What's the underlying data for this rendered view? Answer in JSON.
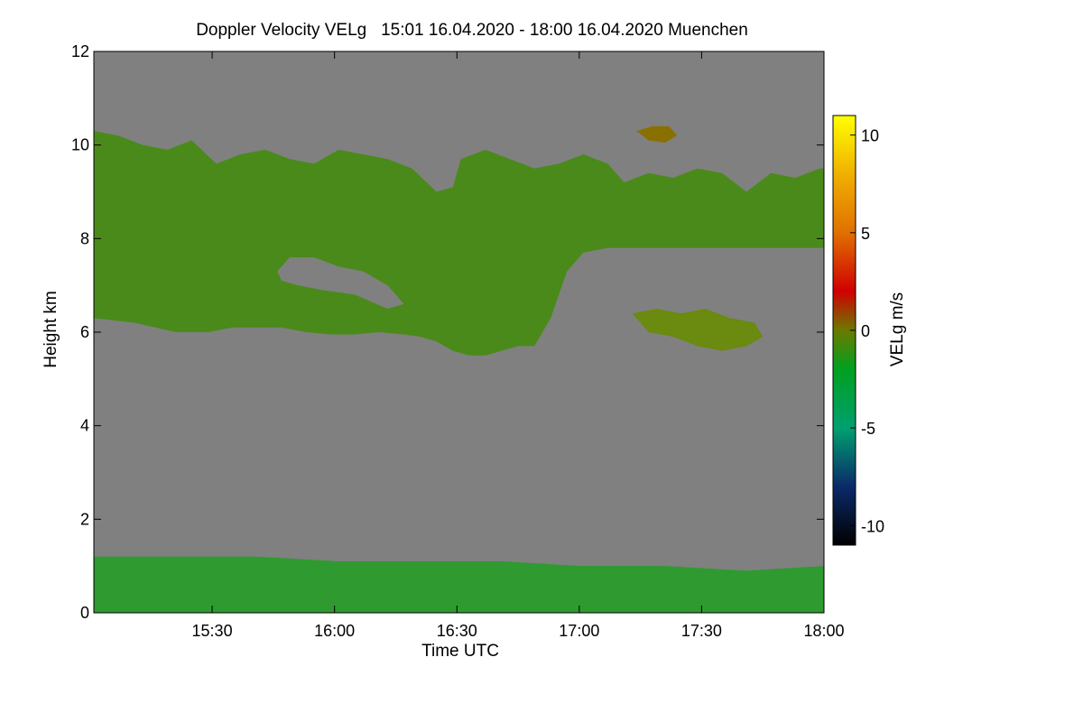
{
  "chart_data": {
    "type": "heatmap",
    "title": "Doppler Velocity VELg   15:01 16.04.2020 - 18:00 16.04.2020 Muenchen",
    "xlabel": "Time UTC",
    "ylabel": "Height km",
    "x_range_minutes": [
      0,
      179
    ],
    "x_ticks": [
      {
        "minute": 29,
        "label": "15:30"
      },
      {
        "minute": 59,
        "label": "16:00"
      },
      {
        "minute": 89,
        "label": "16:30"
      },
      {
        "minute": 119,
        "label": "17:00"
      },
      {
        "minute": 149,
        "label": "17:30"
      },
      {
        "minute": 179,
        "label": "18:00"
      }
    ],
    "ylim": [
      0,
      12
    ],
    "y_ticks": [
      0,
      2,
      4,
      6,
      8,
      10,
      12
    ],
    "colorbar": {
      "label": "VELg m/s",
      "range": [
        -11,
        11
      ],
      "ticks": [
        10,
        5,
        0,
        -5,
        -10
      ],
      "stops": [
        {
          "value": -11,
          "color": "#000000"
        },
        {
          "value": -8,
          "color": "#0b2a6a"
        },
        {
          "value": -5,
          "color": "#00a070"
        },
        {
          "value": -2,
          "color": "#00a020"
        },
        {
          "value": 0,
          "color": "#6a7a00"
        },
        {
          "value": 2,
          "color": "#d00000"
        },
        {
          "value": 5,
          "color": "#e07000"
        },
        {
          "value": 8,
          "color": "#f0b000"
        },
        {
          "value": 11,
          "color": "#ffff00"
        }
      ]
    },
    "background_color": "#808080",
    "regions": [
      {
        "name": "upper cloud layer",
        "velocity_ms": -0.5,
        "color": "#4a8a1a",
        "top_km": [
          [
            0,
            10.3
          ],
          [
            6,
            10.2
          ],
          [
            12,
            10.0
          ],
          [
            18,
            9.9
          ],
          [
            24,
            10.1
          ],
          [
            30,
            9.6
          ],
          [
            36,
            9.8
          ],
          [
            42,
            9.9
          ],
          [
            48,
            9.7
          ],
          [
            54,
            9.6
          ],
          [
            60,
            9.9
          ],
          [
            66,
            9.8
          ],
          [
            72,
            9.7
          ],
          [
            78,
            9.5
          ],
          [
            84,
            9.0
          ],
          [
            88,
            9.1
          ],
          [
            90,
            9.7
          ],
          [
            96,
            9.9
          ],
          [
            102,
            9.7
          ],
          [
            108,
            9.5
          ],
          [
            114,
            9.6
          ],
          [
            120,
            9.8
          ],
          [
            126,
            9.6
          ],
          [
            130,
            9.2
          ],
          [
            136,
            9.4
          ],
          [
            142,
            9.3
          ],
          [
            148,
            9.5
          ],
          [
            154,
            9.4
          ],
          [
            160,
            9.0
          ],
          [
            166,
            9.4
          ],
          [
            172,
            9.3
          ],
          [
            178,
            9.5
          ],
          [
            179,
            9.5
          ]
        ],
        "bottom_km": [
          [
            0,
            6.3
          ],
          [
            10,
            6.2
          ],
          [
            20,
            6.0
          ],
          [
            28,
            6.0
          ],
          [
            34,
            6.1
          ],
          [
            40,
            6.1
          ],
          [
            46,
            6.1
          ],
          [
            52,
            6.0
          ],
          [
            58,
            5.95
          ],
          [
            64,
            5.95
          ],
          [
            70,
            6.0
          ],
          [
            76,
            5.95
          ],
          [
            80,
            5.9
          ],
          [
            84,
            5.8
          ],
          [
            88,
            5.6
          ],
          [
            92,
            5.5
          ],
          [
            96,
            5.5
          ],
          [
            100,
            5.6
          ],
          [
            104,
            5.7
          ],
          [
            108,
            5.7
          ],
          [
            112,
            6.3
          ],
          [
            116,
            7.3
          ],
          [
            120,
            7.7
          ],
          [
            126,
            7.8
          ],
          [
            132,
            7.8
          ],
          [
            140,
            7.8
          ],
          [
            150,
            7.8
          ],
          [
            160,
            7.8
          ],
          [
            170,
            7.8
          ],
          [
            179,
            7.8
          ]
        ]
      },
      {
        "name": "clear gap",
        "velocity_ms": null,
        "color": "#808080",
        "outline_km": [
          [
            45,
            7.3
          ],
          [
            48,
            7.6
          ],
          [
            54,
            7.6
          ],
          [
            60,
            7.4
          ],
          [
            66,
            7.3
          ],
          [
            72,
            7.0
          ],
          [
            76,
            6.6
          ],
          [
            72,
            6.5
          ],
          [
            64,
            6.8
          ],
          [
            56,
            6.9
          ],
          [
            50,
            7.0
          ],
          [
            46,
            7.1
          ]
        ]
      },
      {
        "name": "secondary cloud patch",
        "velocity_ms": 0.5,
        "color": "#6a8a10",
        "outline_km": [
          [
            132,
            6.4
          ],
          [
            138,
            6.5
          ],
          [
            144,
            6.4
          ],
          [
            150,
            6.5
          ],
          [
            156,
            6.3
          ],
          [
            162,
            6.2
          ],
          [
            164,
            5.9
          ],
          [
            160,
            5.7
          ],
          [
            154,
            5.6
          ],
          [
            148,
            5.7
          ],
          [
            142,
            5.9
          ],
          [
            136,
            6.0
          ]
        ]
      },
      {
        "name": "small cloud fragment",
        "velocity_ms": 1.5,
        "color": "#8a7000",
        "outline_km": [
          [
            133,
            10.3
          ],
          [
            137,
            10.4
          ],
          [
            141,
            10.4
          ],
          [
            143,
            10.2
          ],
          [
            140,
            10.05
          ],
          [
            136,
            10.1
          ]
        ]
      },
      {
        "name": "boundary layer",
        "velocity_ms": -1.5,
        "color": "#2e9a30",
        "top_km": [
          [
            0,
            1.2
          ],
          [
            20,
            1.2
          ],
          [
            40,
            1.2
          ],
          [
            60,
            1.1
          ],
          [
            80,
            1.1
          ],
          [
            100,
            1.1
          ],
          [
            120,
            1.0
          ],
          [
            140,
            1.0
          ],
          [
            160,
            0.9
          ],
          [
            179,
            1.0
          ]
        ],
        "bottom_km": [
          [
            0,
            0
          ],
          [
            179,
            0
          ]
        ]
      }
    ]
  }
}
